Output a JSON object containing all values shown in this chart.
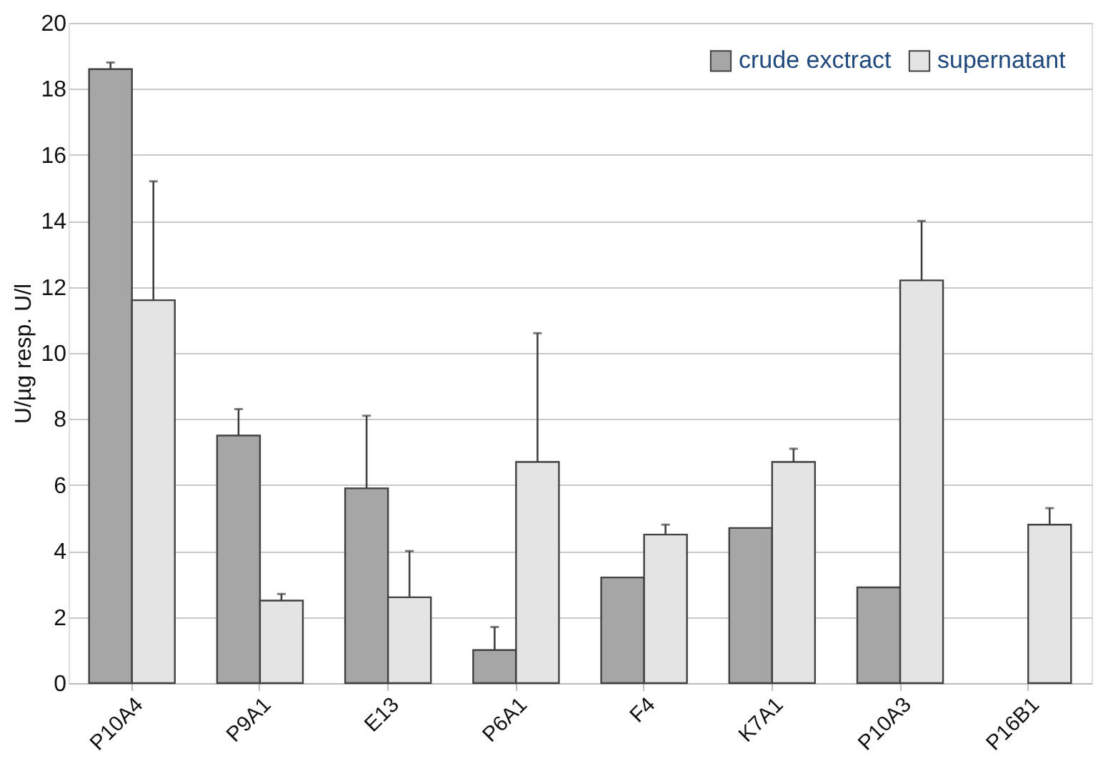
{
  "chart_data": {
    "type": "bar",
    "ylabel": "U/µg  resp. U/l",
    "categories": [
      "P10A4",
      "P9A1",
      "E13",
      "P6A1",
      "F4",
      "K7A1",
      "P10A3",
      "P16B1"
    ],
    "series": [
      {
        "name": "crude exctract",
        "color": "#a6a6a6",
        "values": [
          18.6,
          7.5,
          5.9,
          1.0,
          3.2,
          4.7,
          2.9,
          null
        ],
        "errors": [
          [
            18.6,
            18.8
          ],
          [
            7.5,
            8.3
          ],
          [
            5.9,
            8.1
          ],
          [
            1.0,
            1.7
          ],
          null,
          null,
          null,
          null
        ]
      },
      {
        "name": "supernatant",
        "color": "#e4e4e4",
        "values": [
          11.6,
          2.5,
          2.6,
          6.7,
          4.5,
          6.7,
          12.2,
          4.8
        ],
        "errors": [
          [
            11.6,
            15.2
          ],
          [
            2.5,
            2.7
          ],
          [
            2.6,
            4.0
          ],
          [
            6.7,
            10.6
          ],
          [
            4.5,
            4.8
          ],
          [
            6.7,
            7.1
          ],
          [
            12.2,
            14.0
          ],
          [
            4.8,
            5.3
          ]
        ]
      }
    ],
    "ylim": [
      0,
      20
    ],
    "yticks": [
      0,
      2,
      4,
      6,
      8,
      10,
      12,
      14,
      16,
      18,
      20
    ],
    "grid": "y",
    "legend": "top right"
  }
}
